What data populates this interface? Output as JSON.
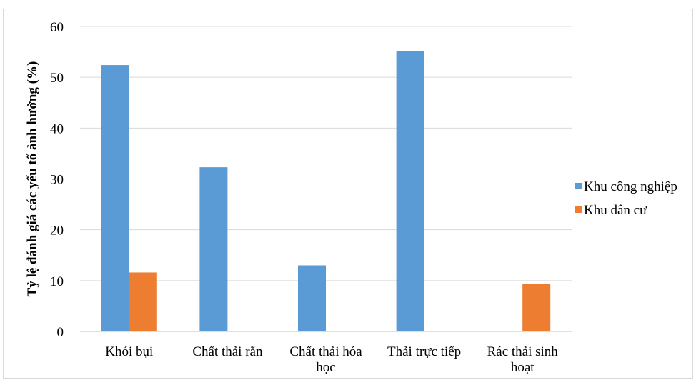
{
  "chart_data": {
    "type": "bar",
    "title": "",
    "xlabel": "",
    "ylabel": "Tỷ lệ đánh giá các yếu tố ảnh hưởng (%)",
    "ylim": [
      0,
      60
    ],
    "yticks": [
      0,
      10,
      20,
      30,
      40,
      50,
      60
    ],
    "grid": true,
    "legend_position": "right",
    "categories": [
      [
        "Khói bụi"
      ],
      [
        "Chất thải rắn"
      ],
      [
        "Chất thải hóa",
        "học"
      ],
      [
        "Thải trực tiếp"
      ],
      [
        "Rác thải sinh",
        "hoạt"
      ]
    ],
    "series": [
      {
        "name": "Khu công nghiệp",
        "color": "#5b9bd5",
        "values": [
          52.4,
          32.3,
          13.0,
          55.2,
          0
        ]
      },
      {
        "name": "Khu dân cư",
        "color": "#ed7d31",
        "values": [
          11.6,
          0,
          0,
          0,
          9.3
        ]
      }
    ]
  }
}
